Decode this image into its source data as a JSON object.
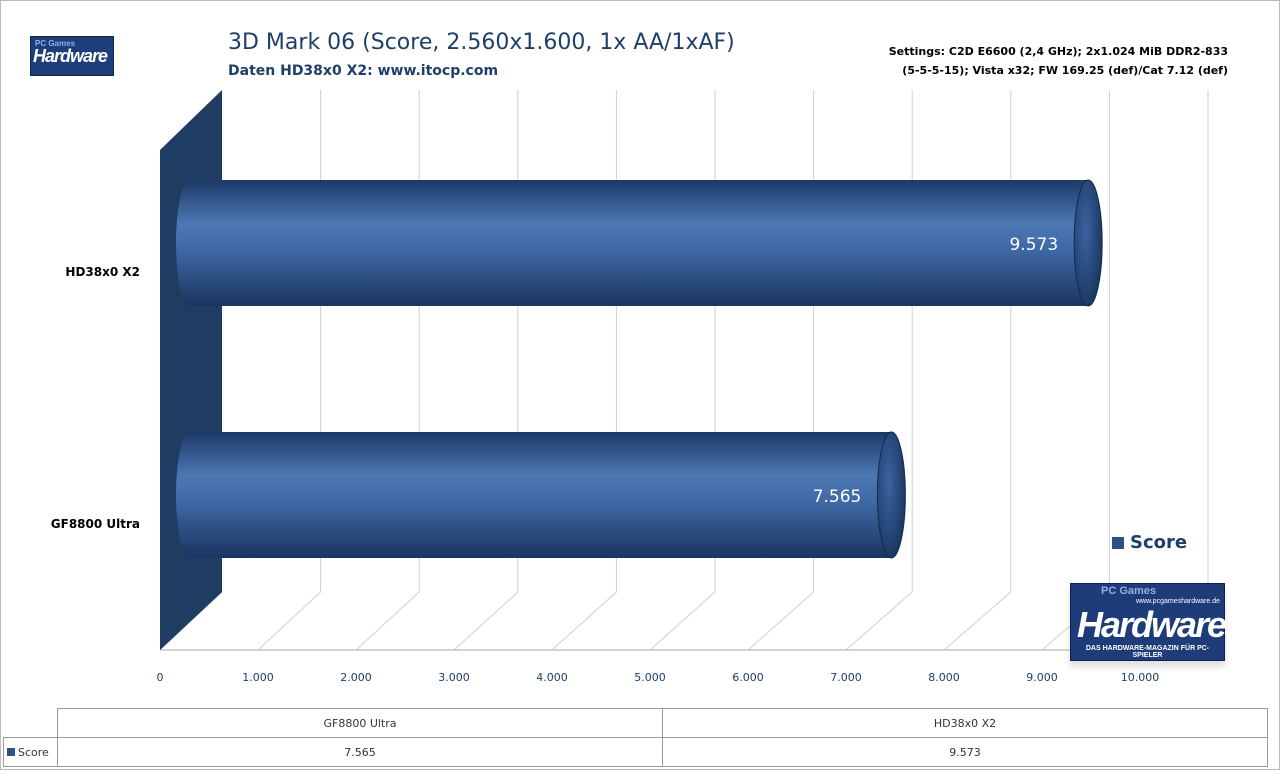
{
  "chart_data": {
    "type": "bar",
    "orientation": "horizontal",
    "title": "3D Mark 06 (Score, 2.560x1.600,  1x AA/1xAF)",
    "subtitle": "Daten HD38x0 X2: www.itocp.com",
    "settings_line1": "Settings: C2D E6600 (2,4 GHz);  2x1.024 MiB DDR2-833",
    "settings_line2": "(5-5-5-15); Vista x32; FW 169.25 (def)/Cat 7.12 (def)",
    "categories": [
      "GF8800 Ultra",
      "HD38x0  X2"
    ],
    "series": [
      {
        "name": "Score",
        "values": [
          7565,
          9573
        ],
        "value_labels": [
          "7.565",
          "9.573"
        ],
        "color": "#2c5185"
      }
    ],
    "xlim": [
      0,
      10000
    ],
    "x_ticks": [
      0,
      1000,
      2000,
      3000,
      4000,
      5000,
      6000,
      7000,
      8000,
      9000,
      10000
    ],
    "x_tick_labels": [
      "0",
      "1.000",
      "2.000",
      "3.000",
      "4.000",
      "5.000",
      "6.000",
      "7.000",
      "8.000",
      "9.000",
      "10.000"
    ],
    "grid": true,
    "legend_position": "right",
    "legend_label": "Score"
  },
  "logos": {
    "small": {
      "pc": "PC Games",
      "hw": "Hardware"
    },
    "big": {
      "pc": "PC Games",
      "url": "www.pcgameshardware.de",
      "hw": "Hardware",
      "tag": "DAS HARDWARE-MAGAZIN FÜR PC-SPIELER"
    }
  },
  "data_table": {
    "headers": [
      "GF8800 Ultra",
      "HD38x0 X2"
    ],
    "series_name": "Score",
    "values": [
      "7.565",
      "9.573"
    ]
  }
}
